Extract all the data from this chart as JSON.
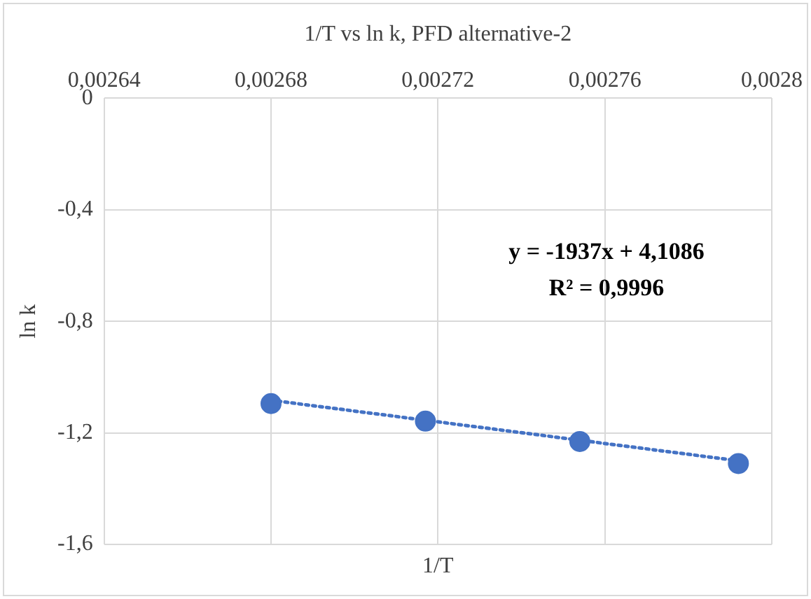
{
  "chart_data": {
    "type": "scatter",
    "title": "1/T vs ln k, PFD alternative-2",
    "xlabel": "1/T",
    "ylabel": "ln k",
    "series": [
      {
        "color": "#4472c4",
        "x": [
          0.00268,
          0.002717,
          0.002754,
          0.002792
        ],
        "values": [
          -1.095,
          -1.158,
          -1.231,
          -1.31
        ],
        "marker": "circle"
      },
      {
        "type": "line",
        "color": "#4472c4",
        "x": [
          0.00268,
          0.002792
        ],
        "values": [
          -1.083,
          -1.3
        ],
        "line_style": "dotted",
        "marker": "none"
      }
    ],
    "xlim": [
      0.00264,
      0.0028
    ],
    "xticks": [
      {
        "value": 0.00264,
        "label": "0,00264"
      },
      {
        "value": 0.00268,
        "label": "0,00268"
      },
      {
        "value": 0.00272,
        "label": "0,00272"
      },
      {
        "value": 0.00276,
        "label": "0,00276"
      },
      {
        "value": 0.0028,
        "label": "0,0028"
      }
    ],
    "ylim": [
      -1.6,
      0
    ],
    "yticks": [
      {
        "value": -1.6,
        "label": "-1,6"
      },
      {
        "value": -1.2,
        "label": "-1,2"
      },
      {
        "value": -0.8,
        "label": "-0,8"
      },
      {
        "value": -0.4,
        "label": "-0,4"
      },
      0
    ],
    "grid": true,
    "legend": false,
    "annotations": [
      "y = -1937x + 4,1086",
      "R² = 0,9996"
    ]
  }
}
